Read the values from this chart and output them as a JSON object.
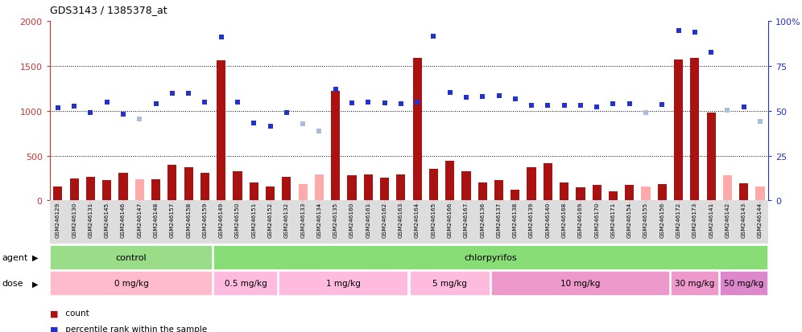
{
  "title": "GDS3143 / 1385378_at",
  "samples": [
    "GSM246129",
    "GSM246130",
    "GSM246131",
    "GSM246145",
    "GSM246146",
    "GSM246147",
    "GSM246148",
    "GSM246157",
    "GSM246158",
    "GSM246159",
    "GSM246149",
    "GSM246150",
    "GSM246151",
    "GSM246152",
    "GSM246132",
    "GSM246133",
    "GSM246134",
    "GSM246135",
    "GSM246160",
    "GSM246161",
    "GSM246162",
    "GSM246163",
    "GSM246164",
    "GSM246165",
    "GSM246166",
    "GSM246167",
    "GSM246136",
    "GSM246137",
    "GSM246138",
    "GSM246139",
    "GSM246140",
    "GSM246168",
    "GSM246169",
    "GSM246170",
    "GSM246171",
    "GSM246154",
    "GSM246155",
    "GSM246156",
    "GSM246172",
    "GSM246173",
    "GSM246141",
    "GSM246142",
    "GSM246143",
    "GSM246144"
  ],
  "values": [
    160,
    250,
    260,
    230,
    310,
    235,
    240,
    400,
    370,
    310,
    1560,
    330,
    200,
    155,
    260,
    185,
    290,
    1220,
    280,
    290,
    255,
    290,
    1590,
    355,
    440,
    325,
    200,
    230,
    120,
    375,
    420,
    200,
    145,
    175,
    100,
    170,
    155,
    180,
    1570,
    1590,
    975,
    280,
    195,
    155
  ],
  "ranks": [
    1030,
    1050,
    975,
    1100,
    965,
    905,
    1080,
    1190,
    1190,
    1100,
    1820,
    1100,
    860,
    830,
    975,
    855,
    770,
    1240,
    1090,
    1100,
    1090,
    1080,
    1100,
    1830,
    1200,
    1150,
    1160,
    1170,
    1130,
    1060,
    1060,
    1060,
    1060,
    1040,
    1080,
    1080,
    975,
    1070,
    1890,
    1870,
    1650,
    1010,
    1040,
    885
  ],
  "detection": [
    "P",
    "P",
    "P",
    "P",
    "P",
    "A",
    "P",
    "P",
    "P",
    "P",
    "P",
    "P",
    "P",
    "P",
    "P",
    "A",
    "A",
    "P",
    "P",
    "P",
    "P",
    "P",
    "P",
    "P",
    "P",
    "P",
    "P",
    "P",
    "P",
    "P",
    "P",
    "P",
    "P",
    "P",
    "P",
    "P",
    "A",
    "P",
    "P",
    "P",
    "P",
    "A",
    "P",
    "A"
  ],
  "agent_groups": [
    {
      "label": "control",
      "start": 0,
      "end": 9,
      "color": "#99dd88"
    },
    {
      "label": "chlorpyrifos",
      "start": 10,
      "end": 43,
      "color": "#88dd77"
    }
  ],
  "dose_groups": [
    {
      "label": "0 mg/kg",
      "start": 0,
      "end": 9,
      "color": "#ffbbcc"
    },
    {
      "label": "0.5 mg/kg",
      "start": 10,
      "end": 13,
      "color": "#ffbbdd"
    },
    {
      "label": "1 mg/kg",
      "start": 14,
      "end": 21,
      "color": "#ffbbdd"
    },
    {
      "label": "5 mg/kg",
      "start": 22,
      "end": 26,
      "color": "#ffbbdd"
    },
    {
      "label": "10 mg/kg",
      "start": 27,
      "end": 37,
      "color": "#ee99cc"
    },
    {
      "label": "30 mg/kg",
      "start": 38,
      "end": 40,
      "color": "#ee99cc"
    },
    {
      "label": "50 mg/kg",
      "start": 41,
      "end": 43,
      "color": "#dd88cc"
    }
  ],
  "ylim": [
    0,
    2000
  ],
  "yticks_left": [
    0,
    500,
    1000,
    1500,
    2000
  ],
  "yticks_right_vals": [
    0,
    500,
    1000,
    1500,
    2000
  ],
  "yticks_right_labels": [
    "0",
    "25",
    "50",
    "75",
    "100%"
  ],
  "color_present_bar": "#aa1111",
  "color_absent_bar": "#ffaaaa",
  "color_present_rank": "#2233cc",
  "color_absent_rank": "#aabbdd",
  "bg": "#ffffff",
  "xtick_bg": "#dddddd",
  "left_tick_color": "#cc3333",
  "right_tick_color": "#2233cc",
  "grid_lines": [
    500,
    1000,
    1500
  ]
}
